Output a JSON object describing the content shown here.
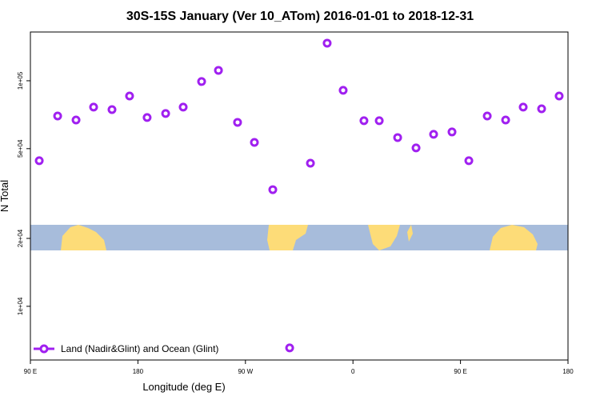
{
  "chart_data": {
    "type": "scatter",
    "title": "30S-15S January (Ver 10_ATom)   2016-01-01 to 2018-12-31",
    "x_label": "Longitude (deg E)",
    "y_label": "N Total",
    "log_y": true,
    "legend": "bottomleft",
    "xlim": [
      90,
      540
    ],
    "ylim": [
      5780,
      164500
    ],
    "xticks": [
      {
        "value": 90,
        "label": "90 E"
      },
      {
        "value": 180,
        "label": "180"
      },
      {
        "value": 270,
        "label": "90 W"
      },
      {
        "value": 360,
        "label": "0"
      },
      {
        "value": 450,
        "label": "90 E"
      },
      {
        "value": 540,
        "label": "180"
      }
    ],
    "yticks": [
      {
        "value": 10000,
        "label": "1e+04"
      },
      {
        "value": 20000,
        "label": "2e+04"
      },
      {
        "value": 50000,
        "label": "5e+04"
      },
      {
        "value": 100000,
        "label": "1e+05"
      }
    ],
    "series": [
      {
        "name": "Land (Nadir&Glint) and Ocean (Glint)",
        "color": "#a020f0",
        "x": [
          97.4,
          112.8,
          128.2,
          142.9,
          158.3,
          173.0,
          187.7,
          203.2,
          217.9,
          233.3,
          247.4,
          263.4,
          277.5,
          292.9,
          307.0,
          324.4,
          338.4,
          351.8,
          369.2,
          382.0,
          397.4,
          412.8,
          427.5,
          442.9,
          457.0,
          472.4,
          487.8,
          502.5,
          517.9,
          532.6
        ],
        "values": [
          44200,
          69800,
          67000,
          76400,
          74500,
          85600,
          68700,
          71600,
          76400,
          99200,
          111200,
          65400,
          53300,
          32900,
          6540,
          43100,
          146800,
          90700,
          66500,
          66500,
          56000,
          50400,
          57900,
          59300,
          44200,
          69800,
          67000,
          76400,
          75100,
          85600
        ]
      }
    ]
  }
}
